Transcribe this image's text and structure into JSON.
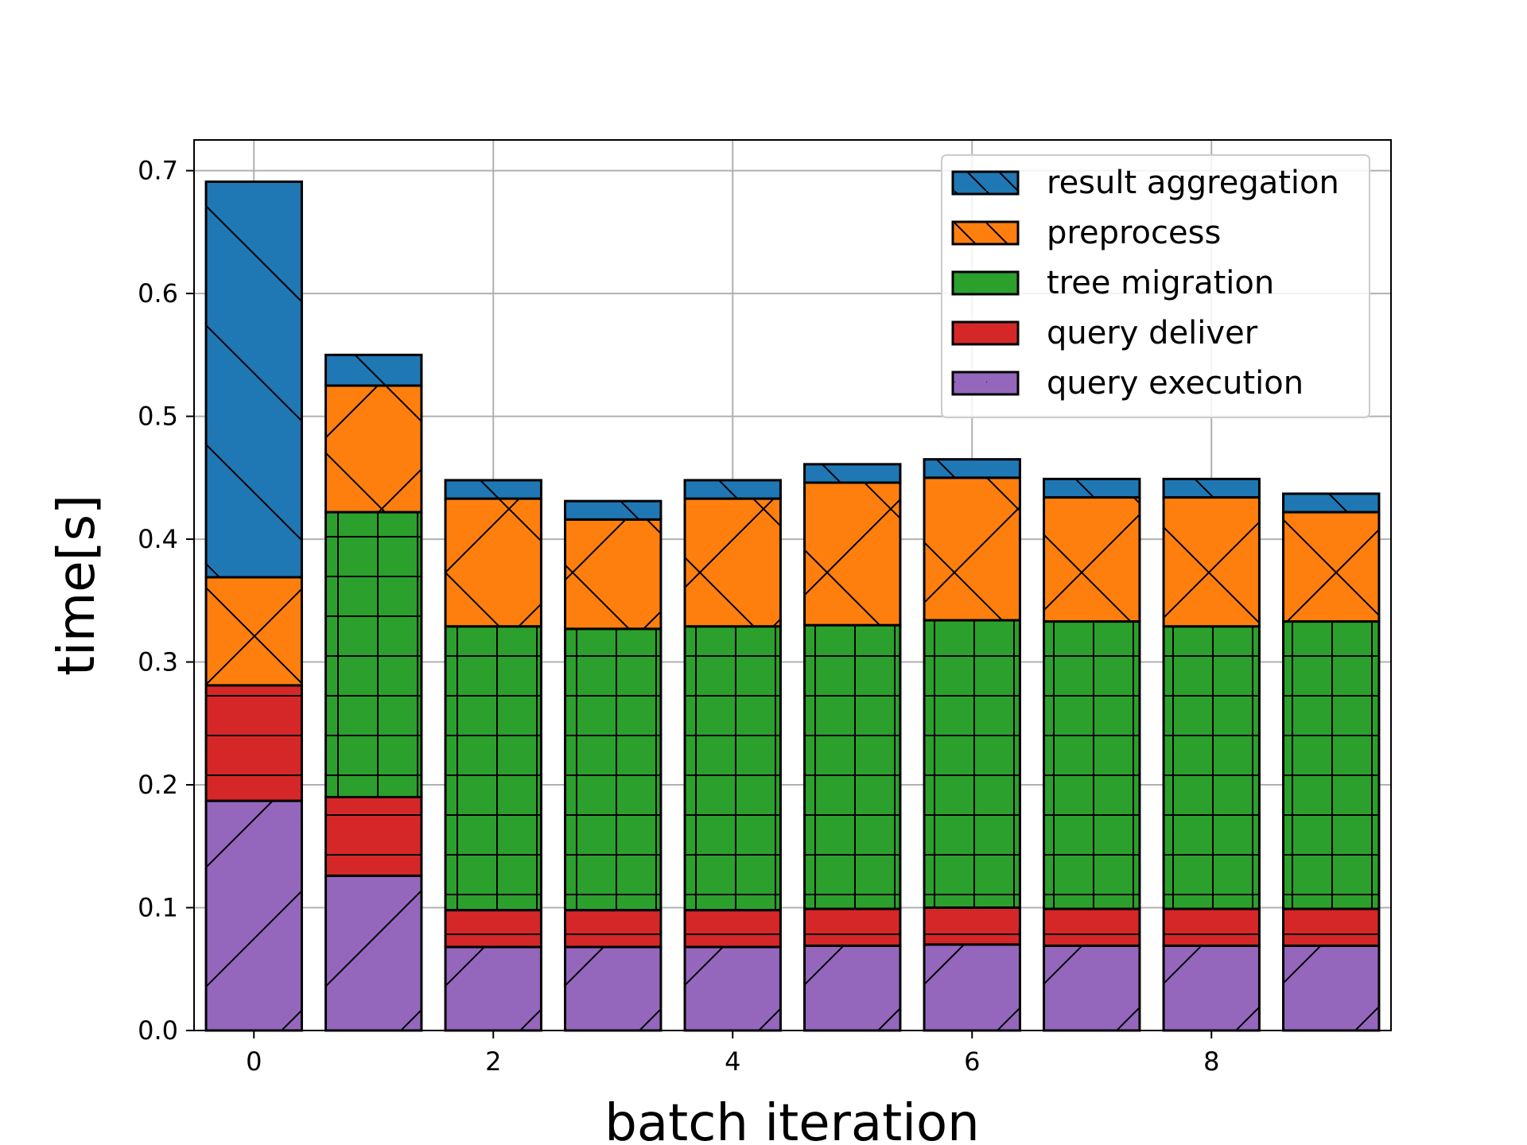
{
  "chart_data": {
    "type": "bar",
    "stacked": true,
    "title": "",
    "xlabel": "batch iteration",
    "ylabel": "time[s]",
    "x": [
      0,
      1,
      2,
      3,
      4,
      5,
      6,
      7,
      8,
      9
    ],
    "xticks": [
      "0",
      "2",
      "4",
      "6",
      "8"
    ],
    "yticks": [
      "0.0",
      "0.1",
      "0.2",
      "0.3",
      "0.4",
      "0.5",
      "0.6",
      "0.7"
    ],
    "ylim": [
      0,
      0.725
    ],
    "xlim": [
      -0.5,
      9.5
    ],
    "grid": true,
    "legend_position": "upper right",
    "series": [
      {
        "name": "query execution",
        "color": "#9467bd",
        "hatch": "/",
        "values": [
          0.187,
          0.126,
          0.068,
          0.068,
          0.068,
          0.069,
          0.07,
          0.069,
          0.069,
          0.069
        ]
      },
      {
        "name": "query deliver",
        "color": "#d62728",
        "hatch": "-",
        "values": [
          0.094,
          0.064,
          0.03,
          0.03,
          0.03,
          0.03,
          0.03,
          0.03,
          0.03,
          0.03
        ]
      },
      {
        "name": "tree migration",
        "color": "#2ca02c",
        "hatch": "+",
        "values": [
          0.0,
          0.232,
          0.231,
          0.229,
          0.231,
          0.231,
          0.234,
          0.234,
          0.23,
          0.234
        ]
      },
      {
        "name": "preprocess",
        "color": "#ff7f0e",
        "hatch": "x",
        "values": [
          0.088,
          0.103,
          0.104,
          0.089,
          0.104,
          0.116,
          0.116,
          0.101,
          0.105,
          0.089
        ]
      },
      {
        "name": "result aggregation",
        "color": "#1f77b4",
        "hatch": "\\",
        "values": [
          0.322,
          0.025,
          0.015,
          0.015,
          0.015,
          0.015,
          0.015,
          0.015,
          0.015,
          0.015
        ]
      }
    ],
    "legend_order": [
      "result aggregation",
      "preprocess",
      "tree migration",
      "query deliver",
      "query execution"
    ]
  }
}
